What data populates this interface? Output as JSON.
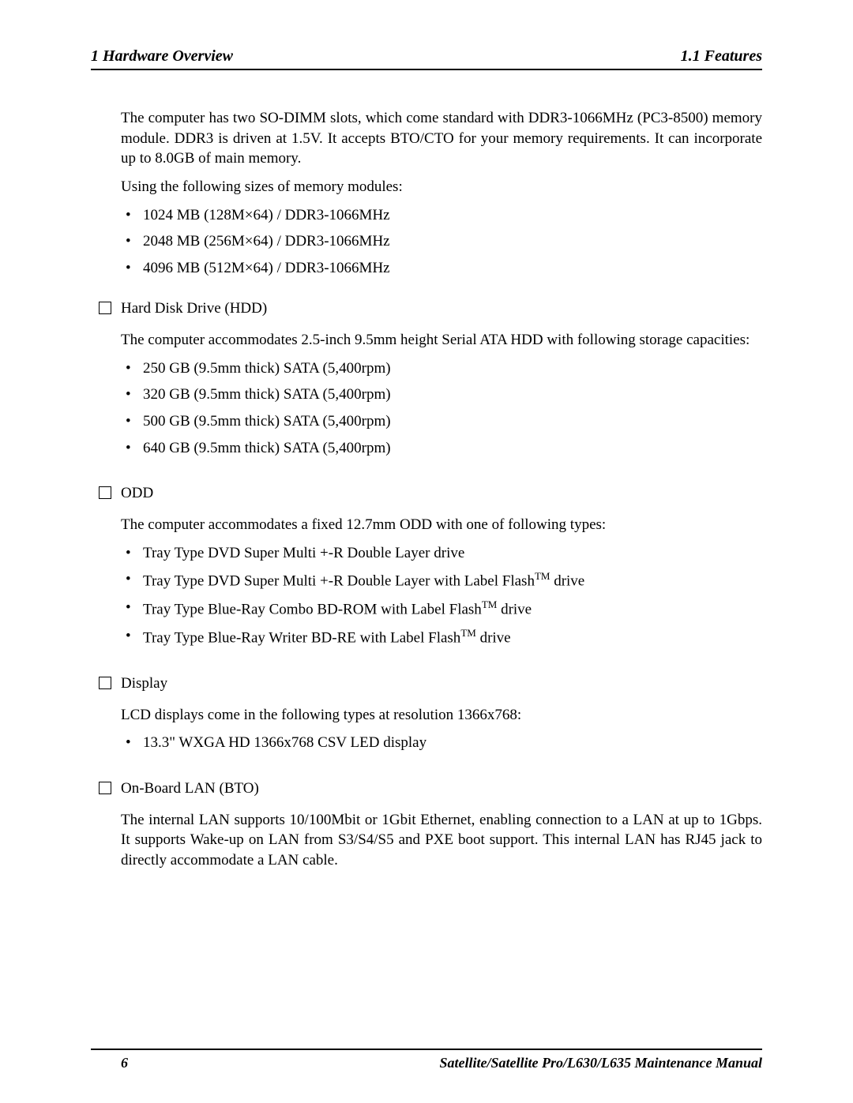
{
  "header": {
    "left": "1 Hardware Overview",
    "right": "1.1 Features"
  },
  "intro": {
    "p1": "The computer has two SO-DIMM slots, which come standard with DDR3-1066MHz (PC3-8500) memory module.  DDR3 is driven at 1.5V.  It accepts BTO/CTO for your memory requirements.  It can incorporate up to 8.0GB of main memory.",
    "p2": "Using the following sizes of memory modules:",
    "bullets": [
      "1024 MB (128M×64) / DDR3-1066MHz",
      "2048 MB (256M×64) / DDR3-1066MHz",
      "4096 MB (512M×64) / DDR3-1066MHz"
    ]
  },
  "sections": [
    {
      "title": "Hard Disk Drive (HDD)",
      "desc": "The computer accommodates 2.5-inch 9.5mm height Serial ATA HDD with following storage capacities:",
      "desc_justify": true,
      "bullets": [
        "250 GB (9.5mm thick) SATA (5,400rpm)",
        "320 GB (9.5mm thick) SATA (5,400rpm)",
        "500 GB (9.5mm thick) SATA (5,400rpm)",
        "640 GB (9.5mm thick) SATA (5,400rpm)"
      ]
    },
    {
      "title": "ODD",
      "desc": "The computer accommodates a fixed 12.7mm ODD with one of following types:",
      "bullets_html": [
        "Tray Type DVD Super Multi +-R Double Layer drive",
        "Tray Type DVD Super Multi +-R Double Layer with Label Flash<span class=\"tm\">TM</span> drive",
        "Tray Type Blue-Ray Combo BD-ROM with Label Flash<span class=\"tm\">TM</span> drive",
        "Tray Type Blue-Ray Writer BD-RE with Label Flash<span class=\"tm\">TM</span> drive"
      ]
    },
    {
      "title": "Display",
      "desc": "LCD displays come in the following types at resolution 1366x768:",
      "bullets": [
        "13.3\" WXGA HD 1366x768 CSV LED display"
      ]
    },
    {
      "title": "On-Board LAN (BTO)",
      "desc": "The internal LAN supports 10/100Mbit or 1Gbit Ethernet, enabling connection to a LAN at up to 1Gbps.  It supports Wake-up on LAN from S3/S4/S5 and PXE boot support.  This internal LAN has RJ45 jack to directly accommodate a LAN cable.",
      "desc_justify": true,
      "bullets": []
    }
  ],
  "footer": {
    "page": "6",
    "text": "Satellite/Satellite Pro/L630/L635      Maintenance Manual"
  }
}
